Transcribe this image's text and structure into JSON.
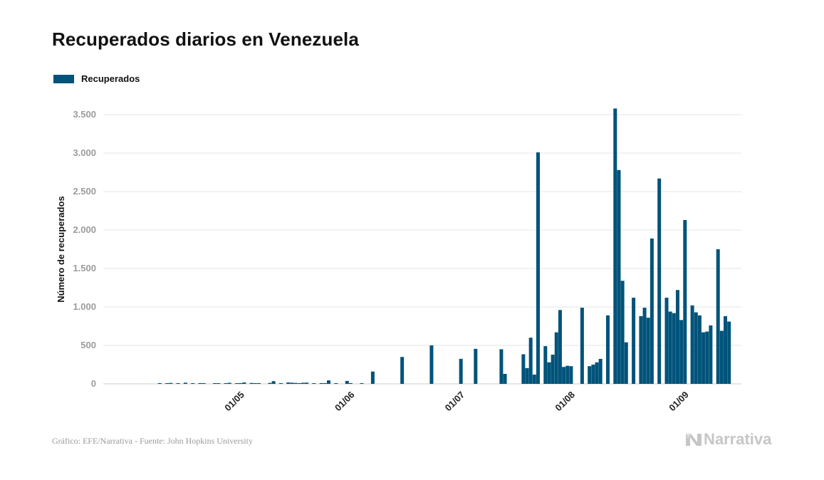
{
  "title": "Recuperados diarios en Venezuela",
  "source": "Gráfico: EFE/Narrativa - Fuente: John Hopkins University",
  "brand": {
    "name": "Narrativa",
    "icon": "narrativa-n-icon"
  },
  "colors": {
    "bar": "#00537a",
    "grid": "#e6e6e6",
    "tick": "#9b9b9b",
    "axis": "#cccccc"
  },
  "chart_data": {
    "type": "bar",
    "title": "Recuperados diarios en Venezuela",
    "xlabel": "",
    "ylabel": "Número de recuperados",
    "ylim": [
      0,
      3700
    ],
    "yticks": [
      0,
      500,
      1000,
      1500,
      2000,
      2500,
      3000,
      3500
    ],
    "ytick_labels": [
      "0",
      "500",
      "1.000",
      "1.500",
      "2.000",
      "2.500",
      "3.000",
      "3.500"
    ],
    "xticks": [
      {
        "day": 31,
        "label": "01/05"
      },
      {
        "day": 61,
        "label": "01/06"
      },
      {
        "day": 91,
        "label": "01/07"
      },
      {
        "day": 121,
        "label": "01/08"
      },
      {
        "day": 152,
        "label": "01/09"
      }
    ],
    "grid": true,
    "legend": "top-left",
    "series": [
      {
        "name": "Recuperados",
        "values": [
          {
            "day": 9,
            "value": 10
          },
          {
            "day": 11,
            "value": 5
          },
          {
            "day": 12,
            "value": 12
          },
          {
            "day": 14,
            "value": 8
          },
          {
            "day": 16,
            "value": 15
          },
          {
            "day": 18,
            "value": 6
          },
          {
            "day": 20,
            "value": 10
          },
          {
            "day": 21,
            "value": 8
          },
          {
            "day": 24,
            "value": 5
          },
          {
            "day": 25,
            "value": 7
          },
          {
            "day": 27,
            "value": 9
          },
          {
            "day": 28,
            "value": 14
          },
          {
            "day": 30,
            "value": 6
          },
          {
            "day": 31,
            "value": 10
          },
          {
            "day": 32,
            "value": 18
          },
          {
            "day": 34,
            "value": 12
          },
          {
            "day": 35,
            "value": 8
          },
          {
            "day": 36,
            "value": 6
          },
          {
            "day": 39,
            "value": 12
          },
          {
            "day": 40,
            "value": 35
          },
          {
            "day": 42,
            "value": 5
          },
          {
            "day": 44,
            "value": 18
          },
          {
            "day": 45,
            "value": 15
          },
          {
            "day": 46,
            "value": 12
          },
          {
            "day": 47,
            "value": 8
          },
          {
            "day": 48,
            "value": 14
          },
          {
            "day": 49,
            "value": 16
          },
          {
            "day": 51,
            "value": 5
          },
          {
            "day": 53,
            "value": 10
          },
          {
            "day": 54,
            "value": 6
          },
          {
            "day": 55,
            "value": 45
          },
          {
            "day": 57,
            "value": 5
          },
          {
            "day": 60,
            "value": 38
          },
          {
            "day": 61,
            "value": 5
          },
          {
            "day": 64,
            "value": 8
          },
          {
            "day": 67,
            "value": 160
          },
          {
            "day": 75,
            "value": 350
          },
          {
            "day": 83,
            "value": 500
          },
          {
            "day": 91,
            "value": 325
          },
          {
            "day": 95,
            "value": 455
          },
          {
            "day": 102,
            "value": 450
          },
          {
            "day": 103,
            "value": 130
          },
          {
            "day": 108,
            "value": 385
          },
          {
            "day": 109,
            "value": 205
          },
          {
            "day": 110,
            "value": 600
          },
          {
            "day": 111,
            "value": 120
          },
          {
            "day": 112,
            "value": 3010
          },
          {
            "day": 114,
            "value": 490
          },
          {
            "day": 115,
            "value": 280
          },
          {
            "day": 116,
            "value": 380
          },
          {
            "day": 117,
            "value": 670
          },
          {
            "day": 118,
            "value": 960
          },
          {
            "day": 119,
            "value": 220
          },
          {
            "day": 120,
            "value": 235
          },
          {
            "day": 121,
            "value": 230
          },
          {
            "day": 124,
            "value": 990
          },
          {
            "day": 126,
            "value": 230
          },
          {
            "day": 127,
            "value": 250
          },
          {
            "day": 128,
            "value": 280
          },
          {
            "day": 129,
            "value": 325
          },
          {
            "day": 131,
            "value": 890
          },
          {
            "day": 133,
            "value": 3580
          },
          {
            "day": 134,
            "value": 2780
          },
          {
            "day": 135,
            "value": 1340
          },
          {
            "day": 136,
            "value": 540
          },
          {
            "day": 138,
            "value": 1120
          },
          {
            "day": 140,
            "value": 880
          },
          {
            "day": 141,
            "value": 990
          },
          {
            "day": 142,
            "value": 860
          },
          {
            "day": 143,
            "value": 1890
          },
          {
            "day": 145,
            "value": 2670
          },
          {
            "day": 147,
            "value": 1120
          },
          {
            "day": 148,
            "value": 940
          },
          {
            "day": 149,
            "value": 920
          },
          {
            "day": 150,
            "value": 1220
          },
          {
            "day": 151,
            "value": 830
          },
          {
            "day": 152,
            "value": 2130
          },
          {
            "day": 154,
            "value": 1020
          },
          {
            "day": 155,
            "value": 930
          },
          {
            "day": 156,
            "value": 890
          },
          {
            "day": 157,
            "value": 670
          },
          {
            "day": 158,
            "value": 680
          },
          {
            "day": 159,
            "value": 760
          },
          {
            "day": 161,
            "value": 1750
          },
          {
            "day": 162,
            "value": 690
          },
          {
            "day": 163,
            "value": 880
          },
          {
            "day": 164,
            "value": 810
          }
        ]
      }
    ]
  }
}
